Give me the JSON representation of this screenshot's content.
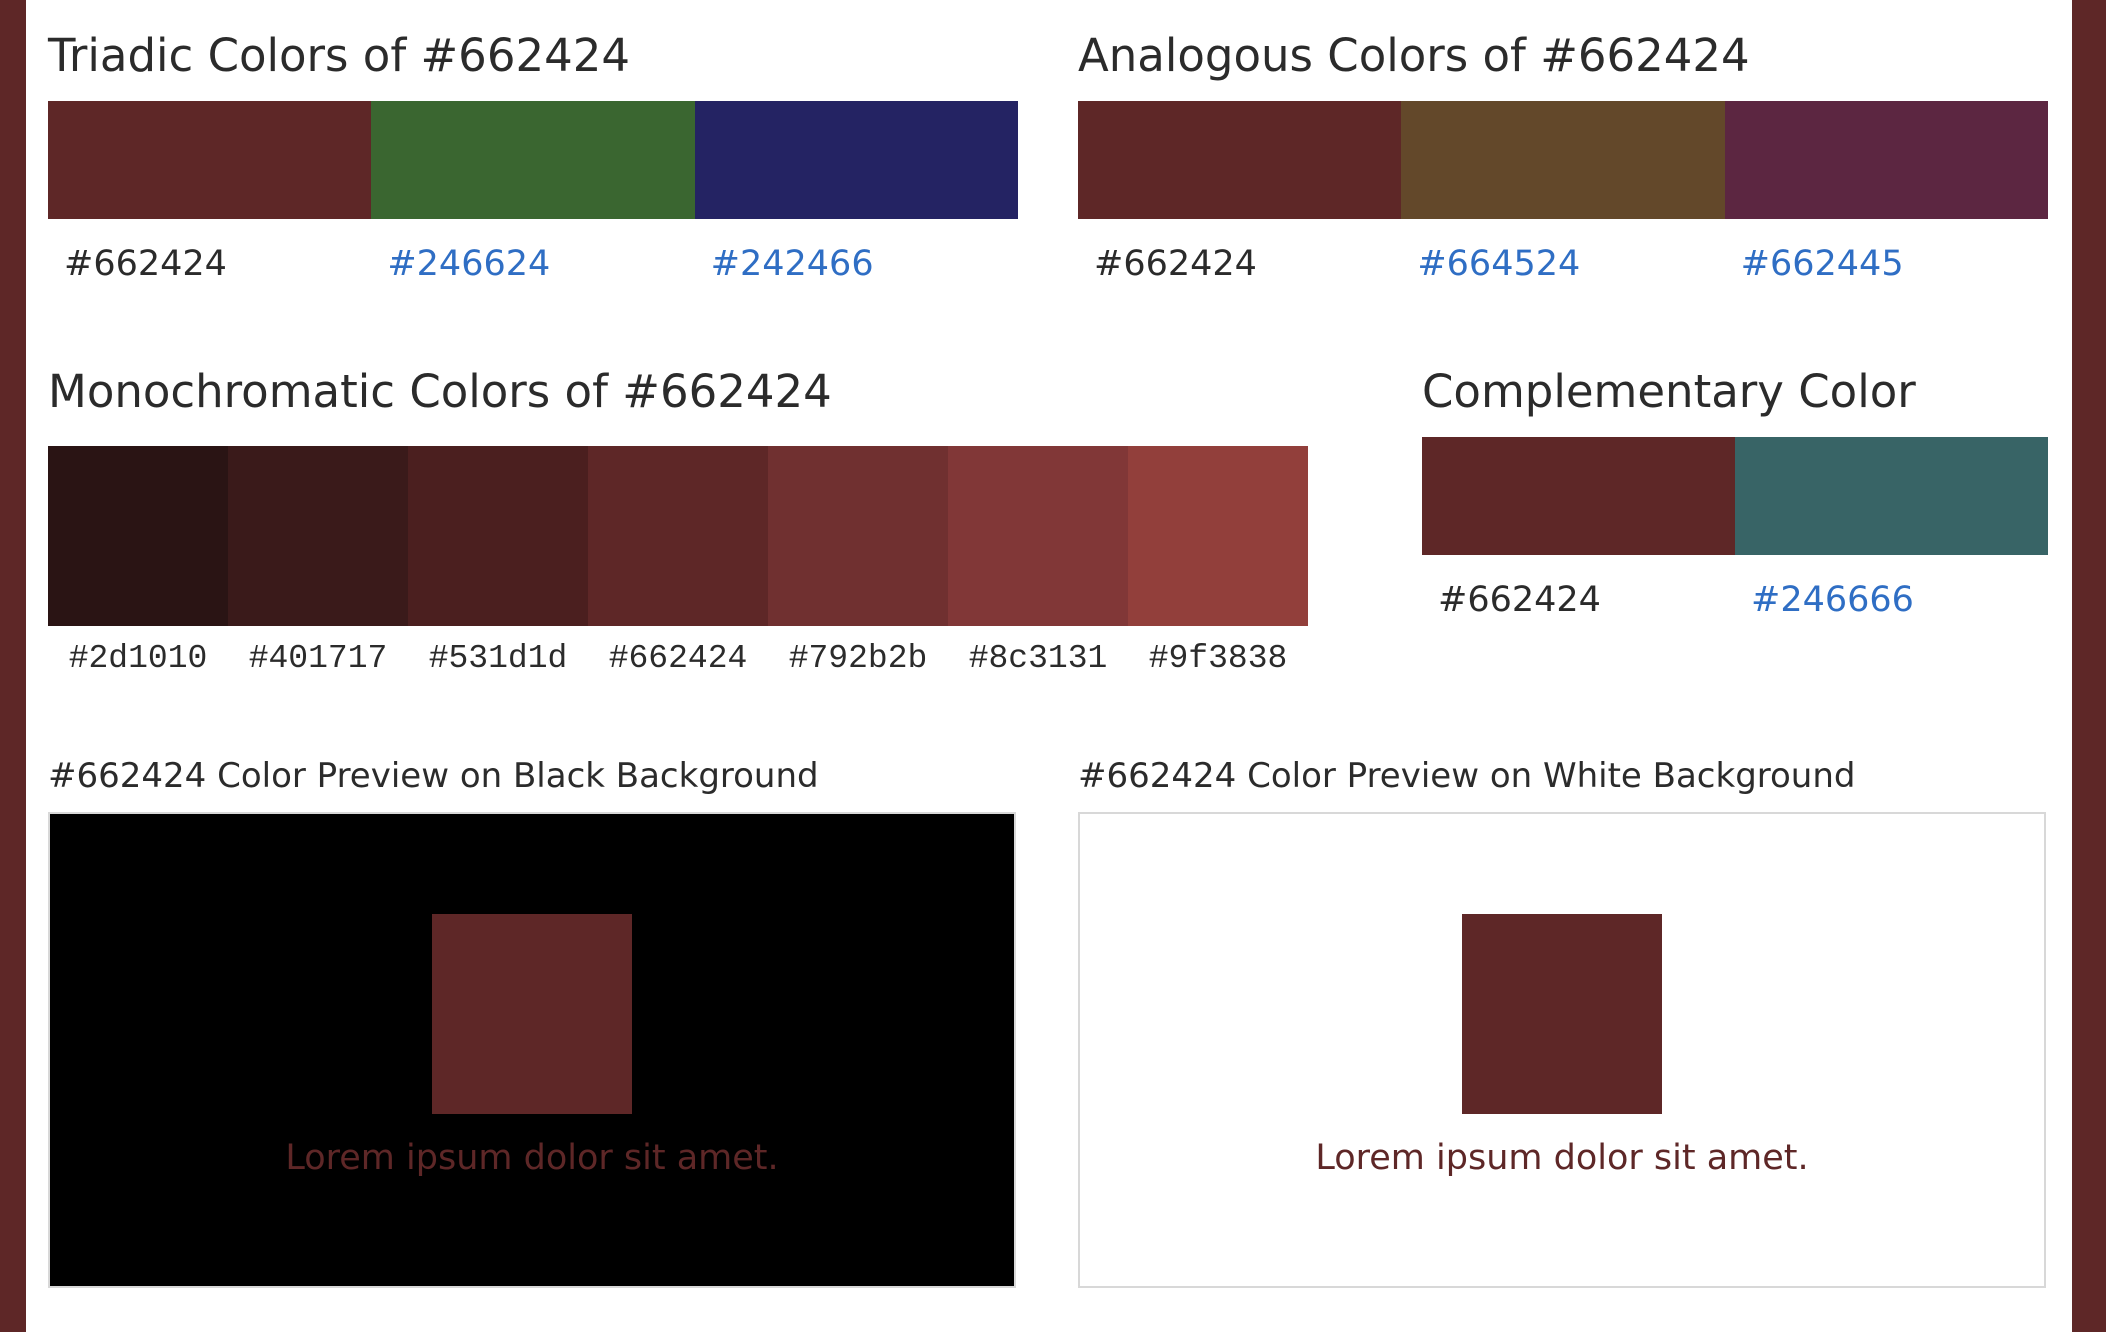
{
  "triadic": {
    "title": "Triadic Colors of #662424",
    "swatches": [
      {
        "color": "#5e2727",
        "label": "#662424",
        "link": false
      },
      {
        "color": "#3a6630",
        "label": "#246624",
        "link": true
      },
      {
        "color": "#242363",
        "label": "#242466",
        "link": true
      }
    ]
  },
  "analogous": {
    "title": "Analogous Colors of #662424",
    "swatches": [
      {
        "color": "#5e2727",
        "label": "#662424",
        "link": false
      },
      {
        "color": "#63482a",
        "label": "#664524",
        "link": true
      },
      {
        "color": "#5c2641",
        "label": "#662445",
        "link": true
      }
    ]
  },
  "monochromatic": {
    "title": "Monochromatic Colors of #662424",
    "swatches": [
      {
        "color": "#2a1414",
        "label": "#2d1010"
      },
      {
        "color": "#3a1a1a",
        "label": "#401717"
      },
      {
        "color": "#4b1f1f",
        "label": "#531d1d"
      },
      {
        "color": "#5e2727",
        "label": "#662424"
      },
      {
        "color": "#703030",
        "label": "#792b2b"
      },
      {
        "color": "#813737",
        "label": "#8c3131"
      },
      {
        "color": "#923f3b",
        "label": "#9f3838"
      }
    ]
  },
  "complementary": {
    "title": "Complementary Color",
    "swatches": [
      {
        "color": "#5e2727",
        "label": "#662424",
        "link": false
      },
      {
        "color": "#386466",
        "label": "#246666",
        "link": true
      }
    ]
  },
  "preview_black": {
    "title": "#662424 Color Preview on Black Background",
    "background": "#000000",
    "square_color": "#5e2727",
    "text": "Lorem ipsum dolor sit amet.",
    "text_color": "#5e2727"
  },
  "preview_white": {
    "title": "#662424 Color Preview on White Background",
    "background": "#ffffff",
    "square_color": "#5e2727",
    "text": "Lorem ipsum dolor sit amet.",
    "text_color": "#5e2727"
  }
}
